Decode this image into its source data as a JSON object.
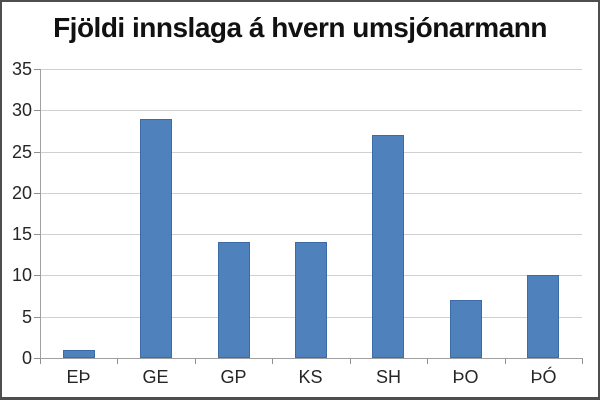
{
  "frame": {
    "background": "#ffffff",
    "border_color": "#4e4e4e"
  },
  "chart_data": {
    "type": "bar",
    "title": "Fjöldi innslaga á hvern umsjónarmann",
    "categories": [
      "EÞ",
      "GE",
      "GP",
      "KS",
      "SH",
      "ÞO",
      "ÞÓ"
    ],
    "values": [
      1,
      29,
      14,
      14,
      27,
      7,
      10
    ],
    "xlabel": "",
    "ylabel": "",
    "ylim": [
      0,
      35
    ],
    "yticks": [
      0,
      5,
      10,
      15,
      20,
      25,
      30,
      35
    ],
    "grid": "horizontal",
    "legend": "none",
    "colors": {
      "bar_fill": "#4F81BD",
      "bar_border": "#3C6BA5",
      "gridline": "#D0D0D0",
      "axis": "#A0A0A0",
      "tick": "#8F8F8F",
      "label_text": "#262626",
      "title_text": "#111111"
    }
  }
}
